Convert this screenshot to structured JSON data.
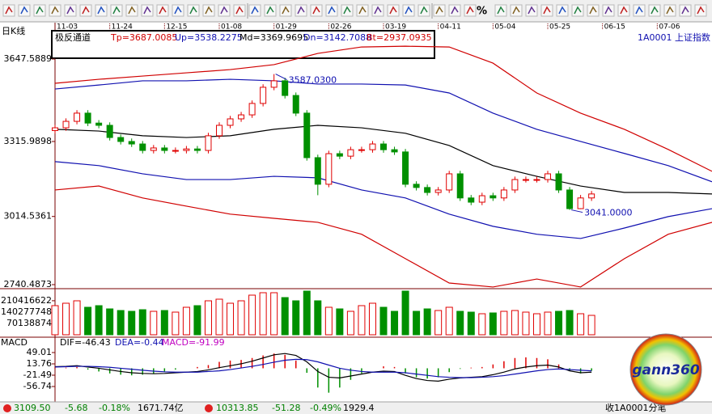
{
  "toolbar": {
    "percent": "%"
  },
  "header": {
    "period": "日K线",
    "symbol": "1A0001 上证指数"
  },
  "chart_data": [
    {
      "type": "candlestick",
      "title": "极反通道",
      "legend": [
        {
          "label": "Tp=3687.0085",
          "color": "#d00000"
        },
        {
          "label": "Up=3538.2275",
          "color": "#1010b0"
        },
        {
          "label": "Md=3369.9695",
          "color": "#000000"
        },
        {
          "label": "Dn=3142.7088",
          "color": "#1010b0"
        },
        {
          "label": "Bt=2937.0935",
          "color": "#d00000"
        }
      ],
      "xlim": [
        0,
        180
      ],
      "xticks": [
        {
          "value": 0,
          "label": "11-03"
        },
        {
          "value": 15,
          "label": "11-24"
        },
        {
          "value": 30,
          "label": "12-15"
        },
        {
          "value": 45,
          "label": "01-08"
        },
        {
          "value": 60,
          "label": "01-29"
        },
        {
          "value": 75,
          "label": "02-26"
        },
        {
          "value": 90,
          "label": "03-19"
        },
        {
          "value": 105,
          "label": "04-11"
        },
        {
          "value": 120,
          "label": "05-04"
        },
        {
          "value": 135,
          "label": "05-25"
        },
        {
          "value": 150,
          "label": "06-15"
        },
        {
          "value": 165,
          "label": "07-06"
        }
      ],
      "ylim": [
        2727.5,
        3754.8
      ],
      "yticks": [
        {
          "value": 3647.5889,
          "label": "3647.5889"
        },
        {
          "value": 3315.9898,
          "label": "3315.9898"
        },
        {
          "value": 3014.5361,
          "label": "3014.5361"
        },
        {
          "value": 2740.4873,
          "label": "2740.4873"
        }
      ],
      "up_color": "#e00000",
      "down_color": "#009000",
      "x": [
        0,
        3,
        6,
        9,
        12,
        15,
        18,
        21,
        24,
        27,
        30,
        33,
        36,
        39,
        42,
        45,
        48,
        51,
        54,
        57,
        60,
        63,
        66,
        69,
        72,
        75,
        78,
        81,
        84,
        87,
        90,
        93,
        96,
        99,
        102,
        105,
        108,
        111,
        114,
        117,
        120,
        123,
        126,
        129,
        132,
        135,
        138,
        141,
        144,
        147
      ],
      "open": [
        3360,
        3371,
        3397,
        3430,
        3390,
        3381,
        3332,
        3316,
        3306,
        3280,
        3290,
        3280,
        3280,
        3286,
        3280,
        3339,
        3381,
        3407,
        3423,
        3469,
        3534,
        3560,
        3501,
        3430,
        3251,
        3144,
        3267,
        3257,
        3283,
        3283,
        3306,
        3283,
        3274,
        3144,
        3131,
        3111,
        3121,
        3186,
        3089,
        3072,
        3098,
        3089,
        3121,
        3163,
        3163,
        3163,
        3186,
        3121,
        3046,
        3089
      ],
      "high": [
        3383,
        3409,
        3442,
        3442,
        3402,
        3393,
        3344,
        3328,
        3318,
        3302,
        3302,
        3292,
        3298,
        3298,
        3351,
        3393,
        3419,
        3435,
        3481,
        3546,
        3587,
        3572,
        3513,
        3442,
        3263,
        3279,
        3279,
        3295,
        3295,
        3318,
        3318,
        3295,
        3286,
        3156,
        3143,
        3133,
        3198,
        3198,
        3101,
        3110,
        3110,
        3133,
        3175,
        3175,
        3175,
        3198,
        3198,
        3133,
        3101,
        3117
      ],
      "low": [
        3348,
        3359,
        3385,
        3378,
        3369,
        3320,
        3304,
        3294,
        3268,
        3268,
        3268,
        3268,
        3268,
        3268,
        3268,
        3327,
        3369,
        3395,
        3411,
        3457,
        3522,
        3489,
        3418,
        3239,
        3100,
        3132,
        3245,
        3245,
        3271,
        3271,
        3271,
        3262,
        3132,
        3119,
        3099,
        3099,
        3109,
        3077,
        3060,
        3060,
        3077,
        3077,
        3109,
        3151,
        3151,
        3151,
        3109,
        3041,
        3044,
        3077
      ],
      "close": [
        3371,
        3397,
        3430,
        3390,
        3381,
        3332,
        3316,
        3306,
        3280,
        3290,
        3280,
        3280,
        3286,
        3280,
        3339,
        3381,
        3407,
        3423,
        3469,
        3534,
        3560,
        3501,
        3430,
        3251,
        3144,
        3267,
        3257,
        3283,
        3283,
        3306,
        3283,
        3274,
        3144,
        3131,
        3111,
        3121,
        3186,
        3089,
        3072,
        3098,
        3089,
        3121,
        3163,
        3163,
        3163,
        3186,
        3121,
        3046,
        3089,
        3105
      ],
      "series": [
        {
          "color": "#d00000",
          "x": [
            0,
            12,
            24,
            36,
            48,
            60,
            72,
            84,
            96,
            108,
            120,
            132,
            144,
            156,
            168,
            180
          ],
          "values": [
            3550,
            3566,
            3579,
            3592,
            3605,
            3625,
            3670,
            3696,
            3699,
            3696,
            3631,
            3511,
            3430,
            3365,
            3284,
            3196
          ]
        },
        {
          "color": "#1010b0",
          "x": [
            0,
            12,
            24,
            36,
            48,
            60,
            72,
            84,
            96,
            108,
            120,
            132,
            144,
            156,
            168,
            180
          ],
          "values": [
            3527,
            3543,
            3560,
            3560,
            3566,
            3560,
            3547,
            3547,
            3543,
            3511,
            3430,
            3365,
            3316,
            3268,
            3219,
            3154
          ]
        },
        {
          "color": "#000000",
          "x": [
            0,
            12,
            24,
            36,
            48,
            60,
            72,
            84,
            96,
            108,
            120,
            132,
            144,
            156,
            168,
            180
          ],
          "values": [
            3365,
            3358,
            3339,
            3332,
            3339,
            3365,
            3381,
            3371,
            3349,
            3300,
            3219,
            3176,
            3137,
            3111,
            3111,
            3105
          ]
        },
        {
          "color": "#1010b0",
          "x": [
            0,
            12,
            24,
            36,
            48,
            60,
            72,
            84,
            96,
            108,
            120,
            132,
            144,
            156,
            168,
            180
          ],
          "values": [
            3235,
            3219,
            3186,
            3163,
            3163,
            3176,
            3170,
            3121,
            3089,
            3024,
            2975,
            2943,
            2926,
            2968,
            3014,
            3046
          ]
        },
        {
          "color": "#d00000",
          "x": [
            0,
            12,
            24,
            36,
            48,
            60,
            72,
            84,
            96,
            108,
            120,
            132,
            144,
            156,
            168,
            180
          ],
          "values": [
            3121,
            3137,
            3089,
            3056,
            3024,
            3007,
            2991,
            2943,
            2845,
            2747,
            2731,
            2763,
            2731,
            2845,
            2943,
            2991
          ]
        }
      ],
      "annotations": [
        {
          "label": "3587.0300",
          "x": 60,
          "y": 3587.03
        },
        {
          "label": "3041.0000",
          "x": 141,
          "y": 3041
        }
      ]
    },
    {
      "type": "volume",
      "xlim": [
        0,
        180
      ],
      "ylim": [
        0,
        280000000
      ],
      "yticks": [
        210416622,
        140277748,
        70138874
      ],
      "x": [
        0,
        3,
        6,
        9,
        12,
        15,
        18,
        21,
        24,
        27,
        30,
        33,
        36,
        39,
        42,
        45,
        48,
        51,
        54,
        57,
        60,
        63,
        66,
        69,
        72,
        75,
        78,
        81,
        84,
        87,
        90,
        93,
        96,
        99,
        102,
        105,
        108,
        111,
        114,
        117,
        120,
        123,
        126,
        129,
        132,
        135,
        138,
        141,
        144,
        147
      ],
      "values": [
        180000000,
        195000000,
        210000000,
        170000000,
        180000000,
        160000000,
        150000000,
        145000000,
        155000000,
        145000000,
        150000000,
        140000000,
        170000000,
        180000000,
        210000000,
        220000000,
        195000000,
        210000000,
        245000000,
        260000000,
        260000000,
        230000000,
        210000000,
        270000000,
        210000000,
        170000000,
        160000000,
        145000000,
        180000000,
        195000000,
        170000000,
        145000000,
        270000000,
        145000000,
        160000000,
        150000000,
        170000000,
        145000000,
        140000000,
        130000000,
        135000000,
        145000000,
        150000000,
        140000000,
        130000000,
        140000000,
        145000000,
        150000000,
        130000000,
        120000000
      ]
    },
    {
      "type": "macd",
      "title": "MACD",
      "legend": [
        {
          "label": "DIF=-46.43",
          "color": "#000000"
        },
        {
          "label": "DEA=-0.44",
          "color": "#1010b0"
        },
        {
          "label": "MACD=-91.99",
          "color": "#c000c0"
        }
      ],
      "xlim": [
        0,
        180
      ],
      "ylim": [
        -104.6,
        76.7
      ],
      "yticks": [
        49.01,
        13.76,
        -21.49,
        -56.74
      ],
      "up_color": "#e00000",
      "down_color": "#009000",
      "x": [
        0,
        3,
        6,
        9,
        12,
        15,
        18,
        21,
        24,
        27,
        30,
        33,
        36,
        39,
        42,
        45,
        48,
        51,
        54,
        57,
        60,
        63,
        66,
        69,
        72,
        75,
        78,
        81,
        84,
        87,
        90,
        93,
        96,
        99,
        102,
        105,
        108,
        111,
        114,
        117,
        120,
        123,
        126,
        129,
        132,
        135,
        138,
        141,
        144,
        147
      ],
      "histogram": [
        2,
        2,
        4,
        -4,
        -10,
        -16,
        -20,
        -22,
        -20,
        -16,
        -10,
        -4,
        0,
        4,
        10,
        20,
        24,
        26,
        32,
        40,
        46,
        42,
        24,
        -14,
        -60,
        -76,
        -60,
        -36,
        -16,
        0,
        6,
        4,
        -16,
        -28,
        -32,
        -28,
        -12,
        -2,
        2,
        4,
        12,
        22,
        32,
        34,
        32,
        28,
        12,
        -8,
        -16,
        -8
      ],
      "series": [
        {
          "color": "#000000",
          "values": [
            5,
            6,
            8,
            4,
            0,
            -5,
            -10,
            -14,
            -16,
            -17,
            -16,
            -14,
            -12,
            -10,
            -5,
            2,
            8,
            14,
            22,
            32,
            42,
            46,
            40,
            20,
            -10,
            -28,
            -30,
            -24,
            -18,
            -12,
            -9,
            -10,
            -22,
            -32,
            -38,
            -40,
            -34,
            -30,
            -28,
            -26,
            -20,
            -12,
            -2,
            4,
            8,
            10,
            4,
            -8,
            -14,
            -12
          ]
        },
        {
          "color": "#1010b0",
          "values": [
            4,
            5,
            6,
            6,
            5,
            3,
            0,
            -3,
            -6,
            -9,
            -11,
            -12,
            -12,
            -12,
            -10,
            -8,
            -4,
            1,
            6,
            12,
            19,
            25,
            28,
            27,
            20,
            10,
            0,
            -6,
            -10,
            -12,
            -12,
            -12,
            -14,
            -18,
            -22,
            -26,
            -28,
            -29,
            -29,
            -28,
            -26,
            -23,
            -18,
            -13,
            -8,
            -4,
            -2,
            -4,
            -6,
            -8
          ]
        }
      ]
    }
  ],
  "logo": {
    "text": "gann360"
  },
  "status_bar": {
    "quotes": [
      {
        "price": "3109.50",
        "change": "-5.68",
        "pct": "-0.18%",
        "amount": "1671.74亿"
      },
      {
        "price": "10313.85",
        "change": "-51.28",
        "pct": "-0.49%",
        "amount": "1929.4"
      }
    ],
    "right": "收1A0001分笔"
  }
}
